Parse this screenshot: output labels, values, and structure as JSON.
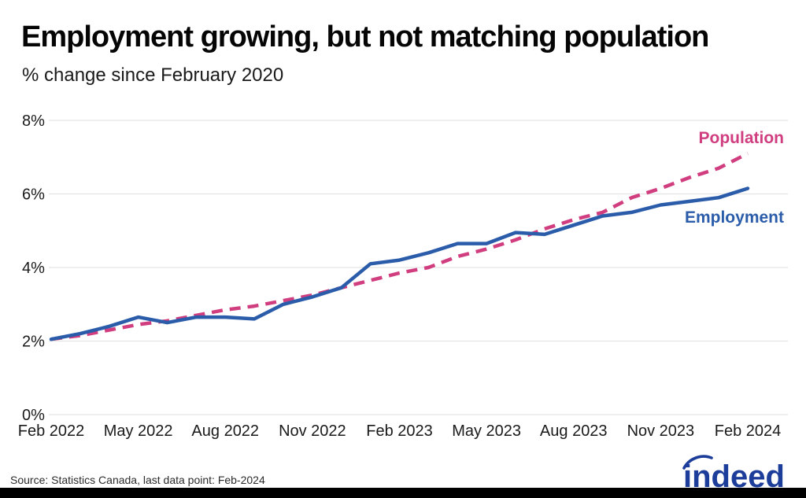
{
  "title": "Employment growing, but not matching population",
  "subtitle": "% change since February 2020",
  "source": "Source: Statistics Canada, last data point: Feb-2024",
  "logo_text": "indeed",
  "colors": {
    "employment_blue": "#2a5caa",
    "population_pink": "#d03e80",
    "grid_gray": "#e3e3e3",
    "logo_blue": "#1c3d99",
    "bottom_bar": "#000000",
    "axis_text": "#1a1a1a"
  },
  "chart_data": {
    "type": "line",
    "x": [
      "Feb 2022",
      "Mar 2022",
      "Apr 2022",
      "May 2022",
      "Jun 2022",
      "Jul 2022",
      "Aug 2022",
      "Sep 2022",
      "Oct 2022",
      "Nov 2022",
      "Dec 2022",
      "Jan 2023",
      "Feb 2023",
      "Mar 2023",
      "Apr 2023",
      "May 2023",
      "Jun 2023",
      "Jul 2023",
      "Aug 2023",
      "Sep 2023",
      "Oct 2023",
      "Nov 2023",
      "Dec 2023",
      "Jan 2024",
      "Feb 2024"
    ],
    "x_tick_labels": [
      "Feb 2022",
      "May 2022",
      "Aug 2022",
      "Nov 2022",
      "Feb 2023",
      "May 2023",
      "Aug 2023",
      "Nov 2023",
      "Feb 2024"
    ],
    "y_ticks": [
      {
        "label": "0%",
        "value": 0
      },
      {
        "label": "2%",
        "value": 2
      },
      {
        "label": "4%",
        "value": 4
      },
      {
        "label": "6%",
        "value": 6
      },
      {
        "label": "8%",
        "value": 8
      }
    ],
    "ylim": [
      0,
      8
    ],
    "grid": "horizontal-only",
    "legend_position": "end-of-line-labels",
    "series": [
      {
        "name": "Population",
        "style": "dashed",
        "color": "#d03e80",
        "values": [
          2.05,
          2.15,
          2.3,
          2.45,
          2.55,
          2.7,
          2.85,
          2.95,
          3.1,
          3.25,
          3.45,
          3.65,
          3.85,
          4.0,
          4.3,
          4.5,
          4.75,
          5.05,
          5.3,
          5.5,
          5.9,
          6.15,
          6.45,
          6.7,
          7.1
        ]
      },
      {
        "name": "Employment",
        "style": "solid",
        "color": "#2a5caa",
        "values": [
          2.05,
          2.2,
          2.4,
          2.65,
          2.5,
          2.65,
          2.65,
          2.6,
          3.0,
          3.2,
          3.45,
          4.1,
          4.2,
          4.4,
          4.65,
          4.65,
          4.95,
          4.9,
          5.15,
          5.4,
          5.5,
          5.7,
          5.8,
          5.9,
          6.15
        ]
      }
    ]
  }
}
